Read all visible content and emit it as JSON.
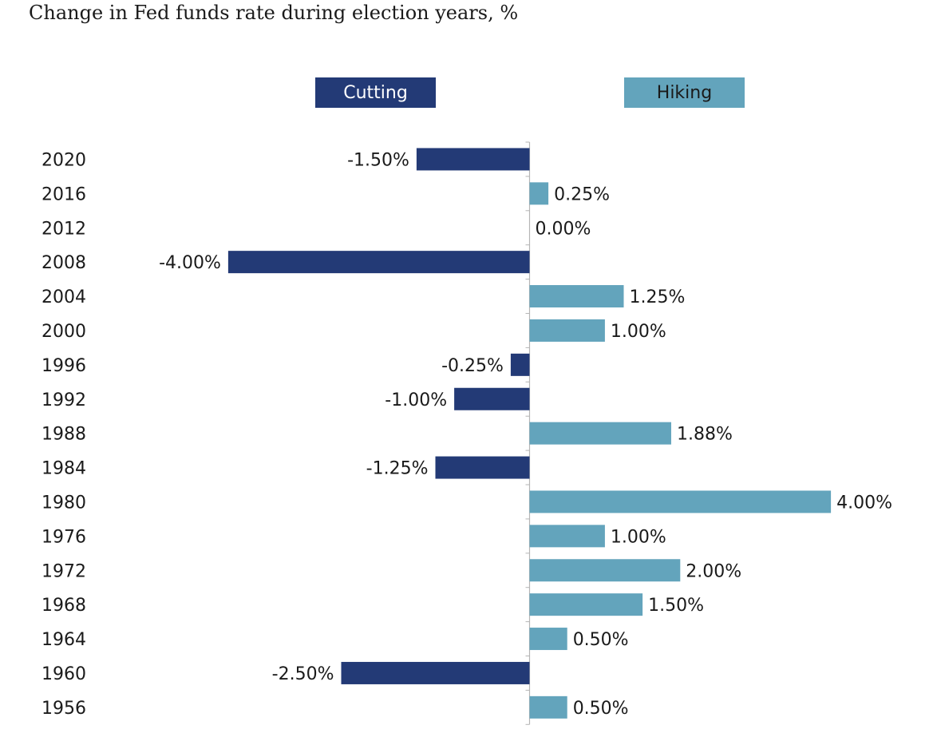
{
  "title": "Change in Fed funds rate during election years, %",
  "colors": {
    "cutting": "#233a76",
    "hiking": "#63a4bc",
    "axis": "#b5b5b5"
  },
  "chart_data": {
    "type": "bar",
    "orientation": "horizontal",
    "title": "Change in Fed funds rate during election years, %",
    "legend": [
      {
        "name": "Cutting",
        "color": "#233a76"
      },
      {
        "name": "Hiking",
        "color": "#63a4bc"
      }
    ],
    "legend_position": "top",
    "categories": [
      "2020",
      "2016",
      "2012",
      "2008",
      "2004",
      "2000",
      "1996",
      "1992",
      "1988",
      "1984",
      "1980",
      "1976",
      "1972",
      "1968",
      "1964",
      "1960",
      "1956"
    ],
    "values": [
      -1.5,
      0.25,
      0.0,
      -4.0,
      1.25,
      1.0,
      -0.25,
      -1.0,
      1.88,
      -1.25,
      4.0,
      1.0,
      2.0,
      1.5,
      0.5,
      -2.5,
      0.5
    ],
    "labels": [
      "-1.50%",
      "0.25%",
      "0.00%",
      "-4.00%",
      "1.25%",
      "1.00%",
      "-0.25%",
      "-1.00%",
      "1.88%",
      "-1.25%",
      "4.00%",
      "1.00%",
      "2.00%",
      "1.50%",
      "0.50%",
      "-2.50%",
      "0.50%"
    ],
    "xlim": [
      -4.0,
      4.0
    ],
    "grid": false
  }
}
